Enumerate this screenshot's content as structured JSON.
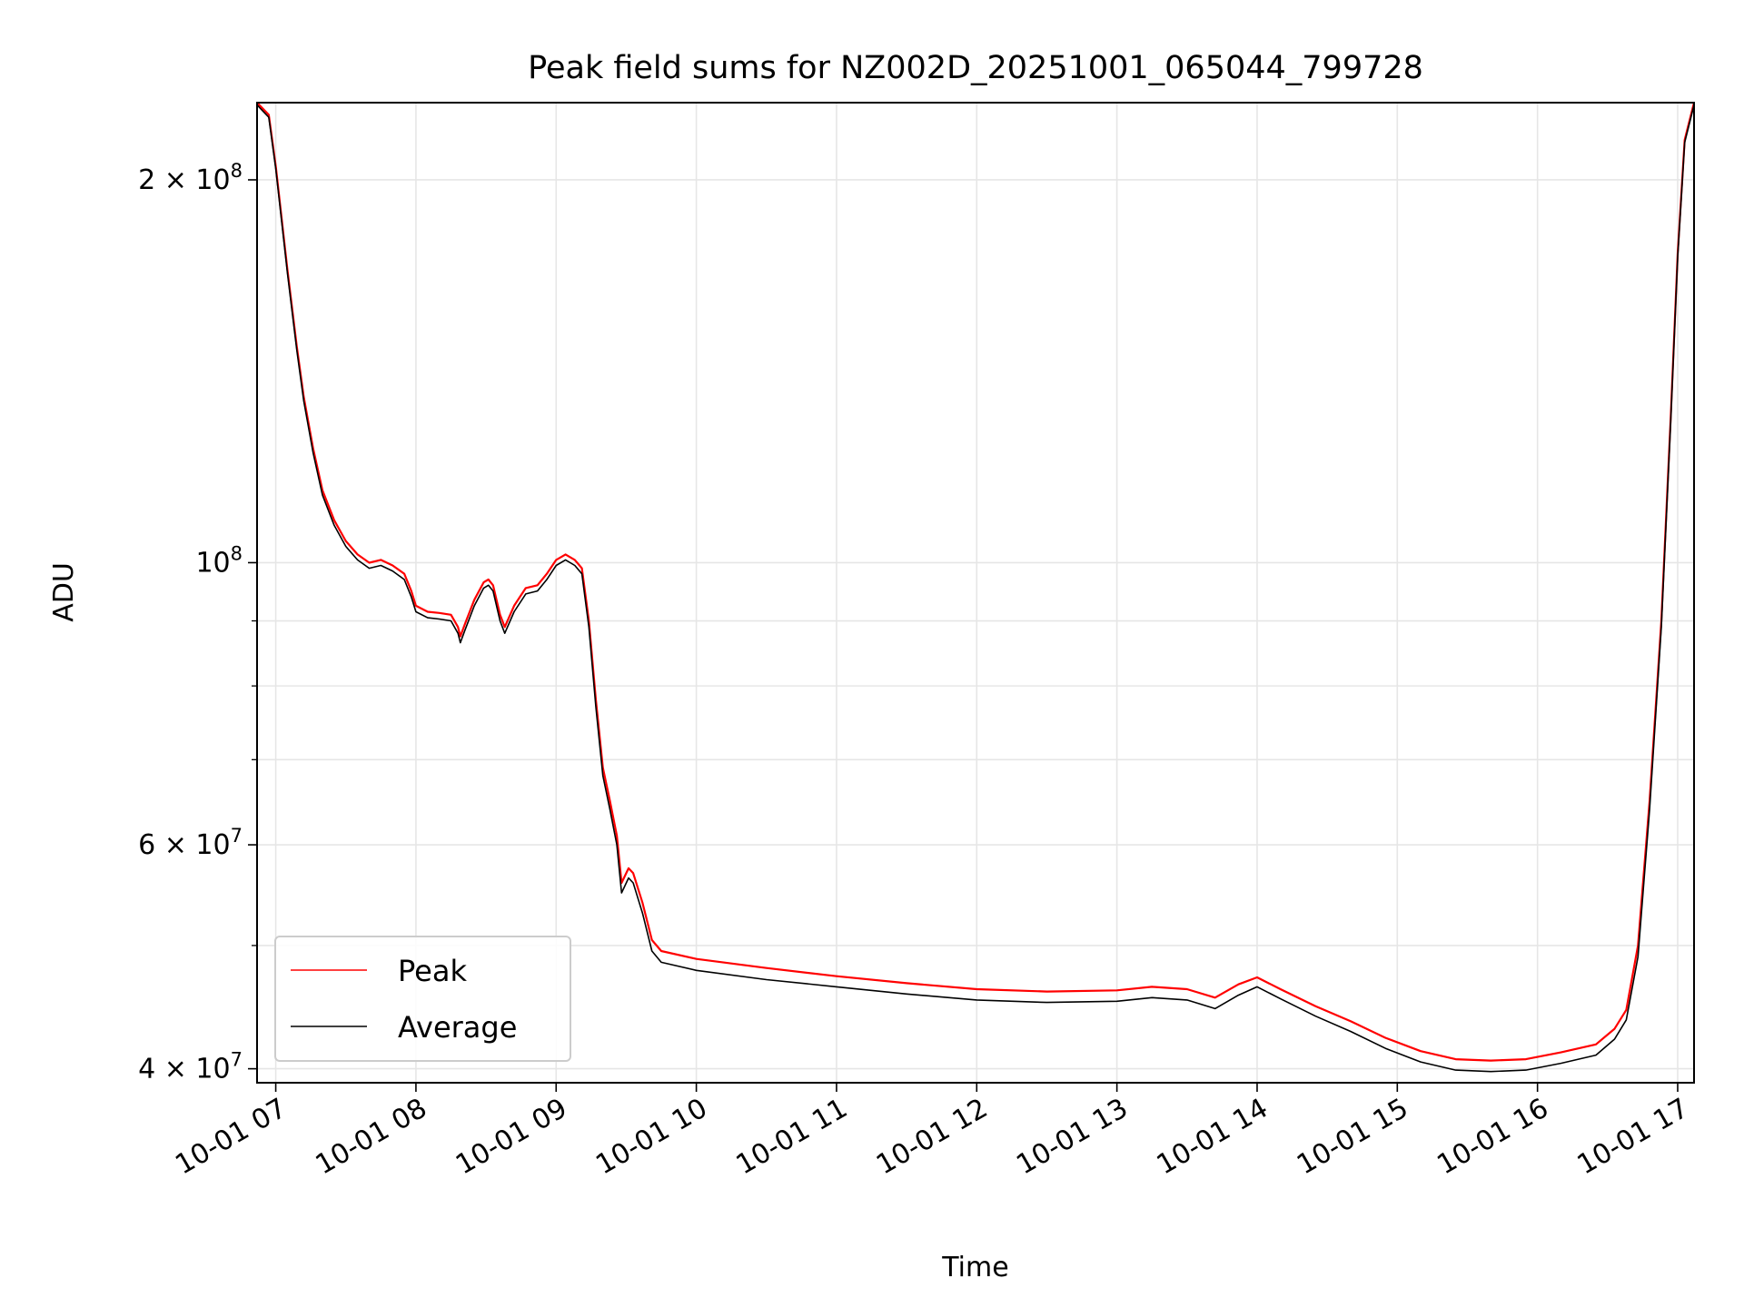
{
  "chart_data": {
    "type": "line",
    "title": "Peak field sums for NZ002D_20251001_065044_799728",
    "xlabel": "Time",
    "ylabel": "ADU",
    "yscale": "log",
    "grid": true,
    "legend_position": "lower-left",
    "xlim": [
      "2025-10-01T06:52",
      "2025-10-01T17:07"
    ],
    "ylim": [
      39000000,
      230000000
    ],
    "x_ticks": [
      {
        "value": "2025-10-01T07:00",
        "label": "10-01 07"
      },
      {
        "value": "2025-10-01T08:00",
        "label": "10-01 08"
      },
      {
        "value": "2025-10-01T09:00",
        "label": "10-01 09"
      },
      {
        "value": "2025-10-01T10:00",
        "label": "10-01 10"
      },
      {
        "value": "2025-10-01T11:00",
        "label": "10-01 11"
      },
      {
        "value": "2025-10-01T12:00",
        "label": "10-01 12"
      },
      {
        "value": "2025-10-01T13:00",
        "label": "10-01 13"
      },
      {
        "value": "2025-10-01T14:00",
        "label": "10-01 14"
      },
      {
        "value": "2025-10-01T15:00",
        "label": "10-01 15"
      },
      {
        "value": "2025-10-01T16:00",
        "label": "10-01 16"
      },
      {
        "value": "2025-10-01T17:00",
        "label": "10-01 17"
      }
    ],
    "y_major_ticks": [
      {
        "value": 40000000,
        "mantissa": "4",
        "exponent": "7"
      },
      {
        "value": 60000000,
        "mantissa": "6",
        "exponent": "7"
      },
      {
        "value": 100000000,
        "mantissa": "",
        "exponent": "8"
      },
      {
        "value": 200000000,
        "mantissa": "2",
        "exponent": "8"
      }
    ],
    "y_minor_ticks": [
      50000000,
      70000000,
      80000000,
      90000000
    ],
    "series": [
      {
        "name": "Peak",
        "color": "#ff0000",
        "points": [
          [
            "2025-10-01T06:52",
            230000000
          ],
          [
            "2025-10-01T06:57",
            225000000
          ],
          [
            "2025-10-01T07:00",
            205000000
          ],
          [
            "2025-10-01T07:05",
            170000000
          ],
          [
            "2025-10-01T07:09",
            148000000
          ],
          [
            "2025-10-01T07:12",
            135000000
          ],
          [
            "2025-10-01T07:16",
            123000000
          ],
          [
            "2025-10-01T07:20",
            114000000
          ],
          [
            "2025-10-01T07:25",
            108000000
          ],
          [
            "2025-10-01T07:30",
            104000000
          ],
          [
            "2025-10-01T07:35",
            101500000
          ],
          [
            "2025-10-01T07:40",
            100000000
          ],
          [
            "2025-10-01T07:45",
            100500000
          ],
          [
            "2025-10-01T07:50",
            99500000
          ],
          [
            "2025-10-01T07:55",
            98000000
          ],
          [
            "2025-10-01T07:58",
            95000000
          ],
          [
            "2025-10-01T08:00",
            92500000
          ],
          [
            "2025-10-01T08:05",
            91500000
          ],
          [
            "2025-10-01T08:10",
            91300000
          ],
          [
            "2025-10-01T08:15",
            91000000
          ],
          [
            "2025-10-01T08:18",
            89000000
          ],
          [
            "2025-10-01T08:19",
            87500000
          ],
          [
            "2025-10-01T08:21",
            89500000
          ],
          [
            "2025-10-01T08:25",
            93500000
          ],
          [
            "2025-10-01T08:29",
            96500000
          ],
          [
            "2025-10-01T08:31",
            97000000
          ],
          [
            "2025-10-01T08:33",
            96000000
          ],
          [
            "2025-10-01T08:36",
            91000000
          ],
          [
            "2025-10-01T08:38",
            89000000
          ],
          [
            "2025-10-01T08:42",
            92500000
          ],
          [
            "2025-10-01T08:47",
            95500000
          ],
          [
            "2025-10-01T08:52",
            96000000
          ],
          [
            "2025-10-01T08:56",
            98000000
          ],
          [
            "2025-10-01T09:00",
            100500000
          ],
          [
            "2025-10-01T09:04",
            101500000
          ],
          [
            "2025-10-01T09:08",
            100500000
          ],
          [
            "2025-10-01T09:11",
            99000000
          ],
          [
            "2025-10-01T09:14",
            90000000
          ],
          [
            "2025-10-01T09:17",
            78000000
          ],
          [
            "2025-10-01T09:20",
            69000000
          ],
          [
            "2025-10-01T09:23",
            65000000
          ],
          [
            "2025-10-01T09:26",
            61000000
          ],
          [
            "2025-10-01T09:28",
            56000000
          ],
          [
            "2025-10-01T09:31",
            57500000
          ],
          [
            "2025-10-01T09:33",
            57000000
          ],
          [
            "2025-10-01T09:37",
            54000000
          ],
          [
            "2025-10-01T09:41",
            50500000
          ],
          [
            "2025-10-01T09:45",
            49500000
          ],
          [
            "2025-10-01T10:00",
            48800000
          ],
          [
            "2025-10-01T10:30",
            48000000
          ],
          [
            "2025-10-01T11:00",
            47300000
          ],
          [
            "2025-10-01T11:30",
            46700000
          ],
          [
            "2025-10-01T12:00",
            46200000
          ],
          [
            "2025-10-01T12:30",
            46000000
          ],
          [
            "2025-10-01T13:00",
            46100000
          ],
          [
            "2025-10-01T13:15",
            46400000
          ],
          [
            "2025-10-01T13:30",
            46200000
          ],
          [
            "2025-10-01T13:42",
            45500000
          ],
          [
            "2025-10-01T13:52",
            46600000
          ],
          [
            "2025-10-01T14:00",
            47200000
          ],
          [
            "2025-10-01T14:10",
            46200000
          ],
          [
            "2025-10-01T14:25",
            44800000
          ],
          [
            "2025-10-01T14:40",
            43600000
          ],
          [
            "2025-10-01T14:55",
            42300000
          ],
          [
            "2025-10-01T15:10",
            41300000
          ],
          [
            "2025-10-01T15:25",
            40700000
          ],
          [
            "2025-10-01T15:40",
            40600000
          ],
          [
            "2025-10-01T15:55",
            40700000
          ],
          [
            "2025-10-01T16:10",
            41200000
          ],
          [
            "2025-10-01T16:25",
            41800000
          ],
          [
            "2025-10-01T16:33",
            43000000
          ],
          [
            "2025-10-01T16:38",
            44500000
          ],
          [
            "2025-10-01T16:43",
            50000000
          ],
          [
            "2025-10-01T16:48",
            65000000
          ],
          [
            "2025-10-01T16:53",
            90000000
          ],
          [
            "2025-10-01T16:57",
            130000000
          ],
          [
            "2025-10-01T17:00",
            175000000
          ],
          [
            "2025-10-01T17:03",
            215000000
          ],
          [
            "2025-10-01T17:07",
            230000000
          ]
        ]
      },
      {
        "name": "Average",
        "color": "#000000",
        "points": [
          [
            "2025-10-01T06:52",
            229000000
          ],
          [
            "2025-10-01T06:57",
            224000000
          ],
          [
            "2025-10-01T07:00",
            204000000
          ],
          [
            "2025-10-01T07:05",
            169000000
          ],
          [
            "2025-10-01T07:09",
            147000000
          ],
          [
            "2025-10-01T07:12",
            134000000
          ],
          [
            "2025-10-01T07:16",
            122000000
          ],
          [
            "2025-10-01T07:20",
            113000000
          ],
          [
            "2025-10-01T07:25",
            107000000
          ],
          [
            "2025-10-01T07:30",
            103000000
          ],
          [
            "2025-10-01T07:35",
            100500000
          ],
          [
            "2025-10-01T07:40",
            99000000
          ],
          [
            "2025-10-01T07:45",
            99500000
          ],
          [
            "2025-10-01T07:50",
            98500000
          ],
          [
            "2025-10-01T07:55",
            97000000
          ],
          [
            "2025-10-01T07:58",
            94000000
          ],
          [
            "2025-10-01T08:00",
            91500000
          ],
          [
            "2025-10-01T08:05",
            90500000
          ],
          [
            "2025-10-01T08:10",
            90300000
          ],
          [
            "2025-10-01T08:15",
            90000000
          ],
          [
            "2025-10-01T08:18",
            88000000
          ],
          [
            "2025-10-01T08:19",
            86500000
          ],
          [
            "2025-10-01T08:21",
            88500000
          ],
          [
            "2025-10-01T08:25",
            92500000
          ],
          [
            "2025-10-01T08:29",
            95500000
          ],
          [
            "2025-10-01T08:31",
            96000000
          ],
          [
            "2025-10-01T08:33",
            95000000
          ],
          [
            "2025-10-01T08:36",
            90000000
          ],
          [
            "2025-10-01T08:38",
            88000000
          ],
          [
            "2025-10-01T08:42",
            91500000
          ],
          [
            "2025-10-01T08:47",
            94500000
          ],
          [
            "2025-10-01T08:52",
            95000000
          ],
          [
            "2025-10-01T08:56",
            97000000
          ],
          [
            "2025-10-01T09:00",
            99500000
          ],
          [
            "2025-10-01T09:04",
            100500000
          ],
          [
            "2025-10-01T09:08",
            99500000
          ],
          [
            "2025-10-01T09:11",
            98000000
          ],
          [
            "2025-10-01T09:14",
            89000000
          ],
          [
            "2025-10-01T09:17",
            77000000
          ],
          [
            "2025-10-01T09:20",
            68000000
          ],
          [
            "2025-10-01T09:23",
            64000000
          ],
          [
            "2025-10-01T09:26",
            60000000
          ],
          [
            "2025-10-01T09:28",
            55000000
          ],
          [
            "2025-10-01T09:31",
            56500000
          ],
          [
            "2025-10-01T09:33",
            56000000
          ],
          [
            "2025-10-01T09:37",
            53000000
          ],
          [
            "2025-10-01T09:41",
            49500000
          ],
          [
            "2025-10-01T09:45",
            48500000
          ],
          [
            "2025-10-01T10:00",
            47800000
          ],
          [
            "2025-10-01T10:30",
            47000000
          ],
          [
            "2025-10-01T11:00",
            46400000
          ],
          [
            "2025-10-01T11:30",
            45800000
          ],
          [
            "2025-10-01T12:00",
            45300000
          ],
          [
            "2025-10-01T12:30",
            45100000
          ],
          [
            "2025-10-01T13:00",
            45200000
          ],
          [
            "2025-10-01T13:15",
            45500000
          ],
          [
            "2025-10-01T13:30",
            45300000
          ],
          [
            "2025-10-01T13:42",
            44600000
          ],
          [
            "2025-10-01T13:52",
            45700000
          ],
          [
            "2025-10-01T14:00",
            46400000
          ],
          [
            "2025-10-01T14:10",
            45400000
          ],
          [
            "2025-10-01T14:25",
            44000000
          ],
          [
            "2025-10-01T14:40",
            42800000
          ],
          [
            "2025-10-01T14:55",
            41500000
          ],
          [
            "2025-10-01T15:10",
            40500000
          ],
          [
            "2025-10-01T15:25",
            39900000
          ],
          [
            "2025-10-01T15:40",
            39800000
          ],
          [
            "2025-10-01T15:55",
            39900000
          ],
          [
            "2025-10-01T16:10",
            40400000
          ],
          [
            "2025-10-01T16:25",
            41000000
          ],
          [
            "2025-10-01T16:33",
            42200000
          ],
          [
            "2025-10-01T16:38",
            43700000
          ],
          [
            "2025-10-01T16:43",
            49000000
          ],
          [
            "2025-10-01T16:48",
            64000000
          ],
          [
            "2025-10-01T16:53",
            89000000
          ],
          [
            "2025-10-01T16:57",
            129000000
          ],
          [
            "2025-10-01T17:00",
            174000000
          ],
          [
            "2025-10-01T17:03",
            214000000
          ],
          [
            "2025-10-01T17:07",
            229000000
          ]
        ]
      }
    ]
  }
}
